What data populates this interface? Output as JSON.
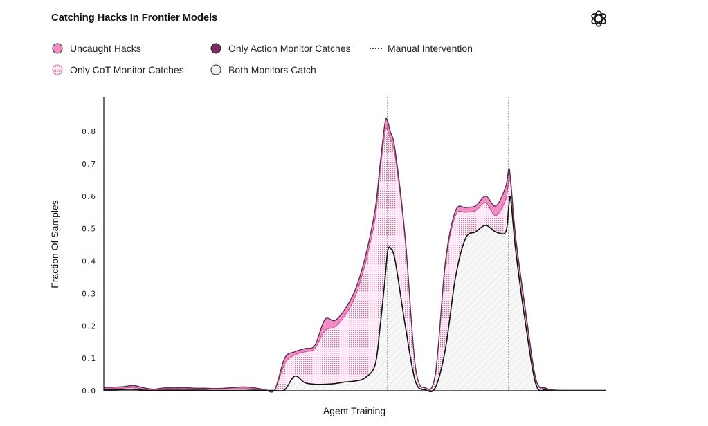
{
  "title": "Catching Hacks In Frontier Models",
  "logo_icon": "openai-logo-icon",
  "colors": {
    "uncaught": "#f28cc4",
    "uncaught_stroke": "#c04d8c",
    "only_action": "#7a2a5c",
    "cot_hatch": "#e06aa8",
    "both": "#f2f2f2",
    "both_stroke": "#111111"
  },
  "legend": [
    {
      "label": "Uncaught Hacks",
      "icon": "pink-filled-circle"
    },
    {
      "label": "Only Action Monitor Catches",
      "icon": "dark-purple-circle"
    },
    {
      "label": "Manual Intervention",
      "icon": "dotted-line"
    },
    {
      "label": "Only CoT Monitor Catches",
      "icon": "pink-dotted-circle"
    },
    {
      "label": "Both Monitors Catch",
      "icon": "gray-outlined-circle"
    }
  ],
  "chart_data": {
    "type": "area",
    "title": "Catching Hacks In Frontier Models",
    "xlabel": "Agent Training",
    "ylabel": "Fraction Of Samples",
    "ylim": [
      0,
      0.9
    ],
    "y_ticks": [
      "0.0",
      "0.1",
      "0.2",
      "0.3",
      "0.4",
      "0.5",
      "0.6",
      "0.7",
      "0.8"
    ],
    "xlim": [
      0,
      100
    ],
    "stacked": true,
    "manual_interventions_x": [
      56.5,
      80.6
    ],
    "x": [
      0,
      2,
      4,
      6,
      8,
      10,
      12,
      14,
      16,
      18,
      20,
      22,
      24,
      26,
      28,
      30,
      32,
      34,
      36,
      38,
      40,
      42,
      44,
      46,
      48,
      50,
      52,
      54,
      55,
      56,
      56.5,
      57,
      58,
      60,
      62,
      64,
      66,
      68,
      70,
      72,
      74,
      76,
      78,
      80,
      80.6,
      81,
      82,
      84,
      86,
      88,
      90,
      92,
      94,
      96,
      98,
      100
    ],
    "series": [
      {
        "name": "Both Monitors Catch",
        "values": [
          0.003,
          0.003,
          0.004,
          0.004,
          0.002,
          0.001,
          0.002,
          0.002,
          0.002,
          0.002,
          0.002,
          0.001,
          0.001,
          0.001,
          0.001,
          0.002,
          0.001,
          0.001,
          0.003,
          0.045,
          0.025,
          0.02,
          0.02,
          0.022,
          0.027,
          0.03,
          0.04,
          0.08,
          0.2,
          0.35,
          0.43,
          0.44,
          0.4,
          0.2,
          0.03,
          0.003,
          0.01,
          0.13,
          0.35,
          0.47,
          0.49,
          0.51,
          0.49,
          0.49,
          0.57,
          0.59,
          0.43,
          0.2,
          0.02,
          0.003,
          0.001,
          0.001,
          0.001,
          0.001,
          0.001,
          0.001
        ]
      },
      {
        "name": "Only Action Monitor Catches",
        "values": [
          0.0,
          0.0,
          0.0,
          0.0,
          0.0,
          0.0,
          0.0,
          0.0,
          0.0,
          0.0,
          0.0,
          0.0,
          0.0,
          0.0,
          0.0,
          0.0,
          0.0,
          0.0,
          0.0,
          0.0,
          0.0,
          0.0,
          0.0,
          0.0,
          0.0,
          0.0,
          0.0,
          0.0,
          0.0,
          0.0,
          0.002,
          0.002,
          0.0,
          0.0,
          0.0,
          0.0,
          0.0,
          0.0,
          0.0,
          0.0,
          0.0,
          0.0,
          0.0,
          0.0,
          0.0,
          0.0,
          0.0,
          0.0,
          0.0,
          0.0,
          0.0,
          0.0,
          0.0,
          0.0,
          0.0,
          0.0
        ]
      },
      {
        "name": "Only CoT Monitor Catches",
        "values": [
          0.003,
          0.004,
          0.004,
          0.006,
          0.003,
          0.002,
          0.004,
          0.004,
          0.005,
          0.004,
          0.004,
          0.004,
          0.004,
          0.005,
          0.006,
          0.004,
          0.002,
          0.001,
          0.08,
          0.065,
          0.095,
          0.11,
          0.165,
          0.175,
          0.205,
          0.26,
          0.35,
          0.45,
          0.48,
          0.45,
          0.37,
          0.335,
          0.32,
          0.26,
          0.045,
          0.005,
          0.04,
          0.26,
          0.19,
          0.08,
          0.065,
          0.07,
          0.05,
          0.1,
          0.08,
          0.04,
          0.03,
          0.03,
          0.012,
          0.004,
          0.001,
          0.0,
          0.0,
          0.0,
          0.0,
          0.0
        ]
      },
      {
        "name": "Uncaught Hacks",
        "values": [
          0.004,
          0.004,
          0.005,
          0.006,
          0.004,
          0.002,
          0.003,
          0.003,
          0.003,
          0.002,
          0.002,
          0.002,
          0.003,
          0.004,
          0.005,
          0.003,
          0.001,
          0.001,
          0.018,
          0.01,
          0.01,
          0.01,
          0.035,
          0.02,
          0.02,
          0.02,
          0.02,
          0.03,
          0.02,
          0.03,
          0.028,
          0.023,
          0.02,
          0.01,
          0.002,
          0.001,
          0.003,
          0.01,
          0.015,
          0.015,
          0.015,
          0.02,
          0.03,
          0.04,
          0.035,
          0.015,
          0.01,
          0.01,
          0.004,
          0.001,
          0.0,
          0.0,
          0.0,
          0.0,
          0.0,
          0.0
        ]
      }
    ]
  }
}
